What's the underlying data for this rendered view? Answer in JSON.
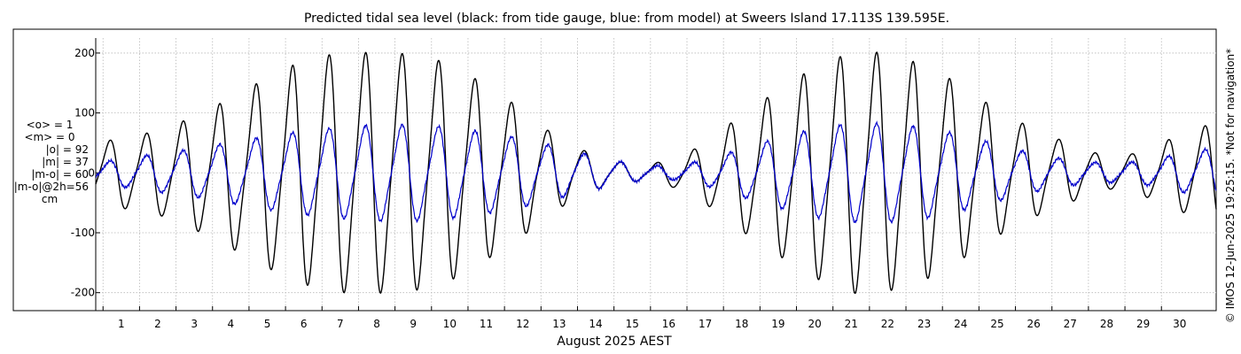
{
  "chart_data": {
    "type": "line",
    "title": "Predicted tidal sea level (black: from tide gauge, blue: from model) at Sweers Island 17.113S 139.595E.",
    "xlabel": "August 2025 AEST",
    "ylabel": "",
    "xlim": [
      0.3,
      31.0
    ],
    "ylim": [
      -230,
      225
    ],
    "x_ticks": [
      1,
      2,
      3,
      4,
      5,
      6,
      7,
      8,
      9,
      10,
      11,
      12,
      13,
      14,
      15,
      16,
      17,
      18,
      19,
      20,
      21,
      22,
      23,
      24,
      25,
      26,
      27,
      28,
      29,
      30
    ],
    "y_ticks": [
      -200,
      -100,
      0,
      100,
      200
    ],
    "grid": true,
    "series": [
      {
        "name": "tide gauge",
        "color": "#000000",
        "amplitude_envelope": {
          "x": [
            0.3,
            0.9,
            1.5,
            2.1,
            2.7,
            3.4,
            4.2,
            5.0,
            5.7,
            6.5,
            7.2,
            8.0,
            8.8,
            9.6,
            10.4,
            11.2,
            12.0,
            12.8,
            13.5,
            14.2,
            14.8,
            15.3,
            16.0,
            16.8,
            17.5,
            18.2,
            19.0,
            19.8,
            20.5,
            21.2,
            21.8,
            22.6,
            23.4,
            24.2,
            25.0,
            25.8,
            26.6,
            27.3,
            28.0,
            28.7,
            29.4,
            30.2,
            31.0
          ],
          "values": [
            45,
            55,
            60,
            68,
            82,
            100,
            125,
            150,
            170,
            185,
            190,
            190,
            188,
            180,
            160,
            130,
            100,
            62,
            40,
            22,
            16,
            12,
            20,
            40,
            70,
            100,
            130,
            160,
            180,
            192,
            190,
            178,
            160,
            130,
            100,
            75,
            55,
            40,
            25,
            30,
            45,
            65,
            80
          ]
        }
      },
      {
        "name": "model",
        "color": "#0000cc",
        "amplitude_envelope": {
          "x": [
            0.3,
            1.0,
            2.0,
            3.0,
            4.0,
            5.0,
            6.0,
            7.0,
            8.0,
            9.0,
            10.0,
            11.0,
            12.0,
            13.0,
            14.0,
            15.0,
            16.0,
            17.0,
            18.0,
            19.0,
            20.0,
            21.0,
            22.0,
            23.0,
            24.0,
            25.0,
            26.0,
            27.0,
            28.0,
            29.0,
            30.0,
            31.0
          ],
          "values": [
            15,
            22,
            30,
            38,
            48,
            58,
            66,
            72,
            76,
            76,
            72,
            64,
            54,
            40,
            26,
            14,
            10,
            20,
            38,
            55,
            70,
            78,
            78,
            72,
            60,
            45,
            30,
            20,
            15,
            18,
            30,
            40
          ]
        }
      }
    ],
    "stats": [
      "<o> = 1",
      "<m> = 0",
      "|o| = 92",
      "|m| = 37",
      "|m-o| = 60",
      "|m-o|@2h=56",
      "cm"
    ],
    "watermark": "© IMOS 12-Jun-2025 19:25:15.  *Not for navigation*"
  }
}
